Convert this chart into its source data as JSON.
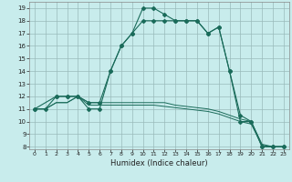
{
  "title": "",
  "xlabel": "Humidex (Indice chaleur)",
  "background_color": "#c8ecec",
  "grid_color": "#9ababa",
  "line_color": "#1a6b5a",
  "xlim": [
    -0.5,
    23.5
  ],
  "ylim": [
    7.8,
    19.5
  ],
  "xticks": [
    0,
    1,
    2,
    3,
    4,
    5,
    6,
    7,
    8,
    9,
    10,
    11,
    12,
    13,
    14,
    15,
    16,
    17,
    18,
    19,
    20,
    21,
    22,
    23
  ],
  "yticks": [
    8,
    9,
    10,
    11,
    12,
    13,
    14,
    15,
    16,
    17,
    18,
    19
  ],
  "curve1_x": [
    0,
    1,
    2,
    3,
    4,
    5,
    6,
    7,
    8,
    9,
    10,
    11,
    12,
    13,
    14,
    15,
    16,
    17,
    18,
    19,
    20,
    21,
    22,
    23
  ],
  "curve1_y": [
    11,
    11,
    12,
    12,
    12,
    11,
    11,
    14,
    16,
    17,
    19,
    19,
    18.5,
    18,
    18,
    18,
    17,
    17.5,
    14,
    10,
    10,
    8,
    8,
    8
  ],
  "curve2_x": [
    0,
    2,
    3,
    4,
    5,
    6,
    7,
    8,
    9,
    10,
    11,
    12,
    13,
    14,
    15,
    16,
    17,
    18,
    19,
    20,
    21,
    22,
    23
  ],
  "curve2_y": [
    11,
    12,
    12,
    12,
    11.5,
    11.5,
    14,
    16,
    17,
    18,
    18,
    18,
    18,
    18,
    18,
    17,
    17.5,
    14,
    10.5,
    10,
    8,
    8,
    8
  ],
  "flat1_x": [
    0,
    1,
    2,
    3,
    4,
    5,
    6,
    7,
    8,
    9,
    10,
    11,
    12,
    13,
    14,
    15,
    16,
    17,
    18,
    19,
    20,
    21,
    22,
    23
  ],
  "flat1_y": [
    11,
    11,
    11.5,
    11.5,
    12,
    11.5,
    11.5,
    11.5,
    11.5,
    11.5,
    11.5,
    11.5,
    11.5,
    11.3,
    11.2,
    11.1,
    11,
    10.8,
    10.5,
    10.2,
    10,
    8.2,
    8,
    8
  ],
  "flat2_x": [
    0,
    1,
    2,
    3,
    4,
    5,
    6,
    7,
    8,
    9,
    10,
    11,
    12,
    13,
    14,
    15,
    16,
    17,
    18,
    19,
    20,
    21,
    22,
    23
  ],
  "flat2_y": [
    11,
    11,
    11.5,
    11.5,
    12,
    11.3,
    11.3,
    11.3,
    11.3,
    11.3,
    11.3,
    11.3,
    11.2,
    11.1,
    11.0,
    10.9,
    10.8,
    10.6,
    10.3,
    10.0,
    9.8,
    8.1,
    8,
    8
  ]
}
